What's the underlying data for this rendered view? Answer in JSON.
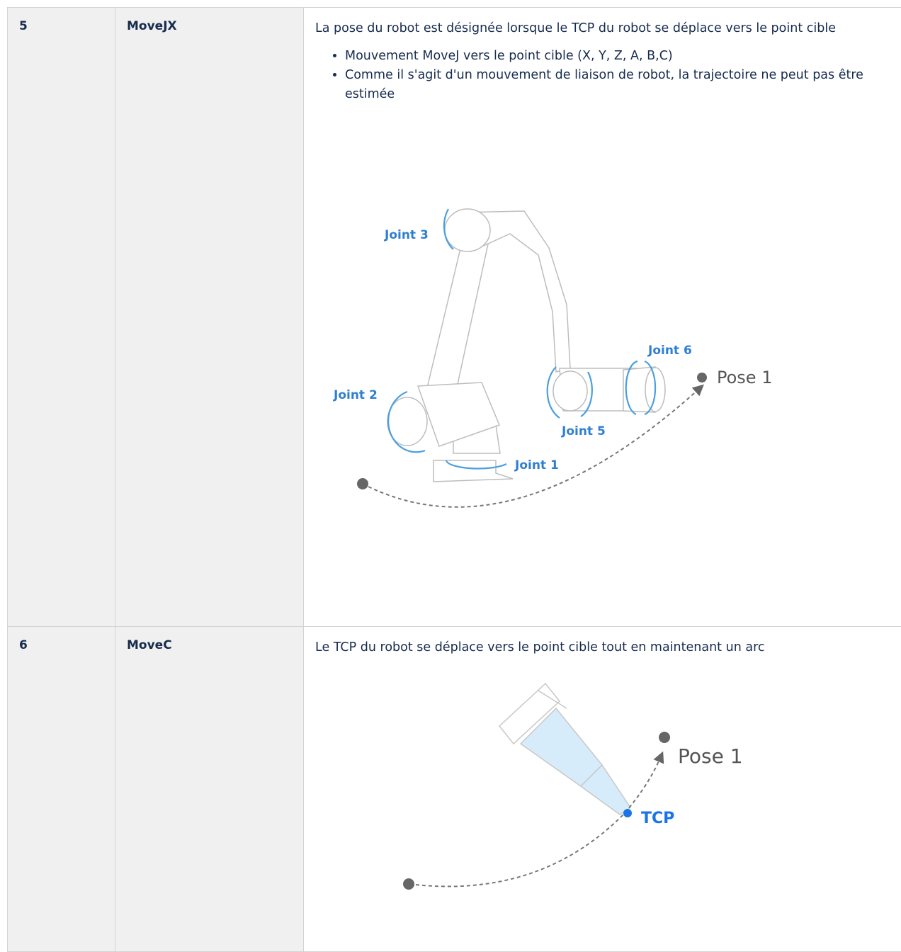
{
  "table": {
    "rows": [
      {
        "number": "5",
        "name": "MoveJX",
        "description": "La pose du robot est désignée lorsque le TCP du robot se déplace vers le point cible",
        "bullets": [
          "Mouvement MoveJ vers le point cible (X, Y, Z, A, B,C)",
          "Comme il s'agit d'un mouvement de liaison de robot, la trajectoire ne peut pas être estimée"
        ],
        "figure": {
          "joint3": "Joint 3",
          "joint2": "Joint 2",
          "joint6": "Joint 6",
          "pose": "Pose 1",
          "joint5": "Joint 5",
          "joint1": "Joint 1"
        }
      },
      {
        "number": "6",
        "name": "MoveC",
        "description": "Le TCP du robot se déplace vers le point cible tout en maintenant un arc",
        "figure": {
          "pose": "Pose 1",
          "tcp": "TCP"
        }
      }
    ]
  }
}
